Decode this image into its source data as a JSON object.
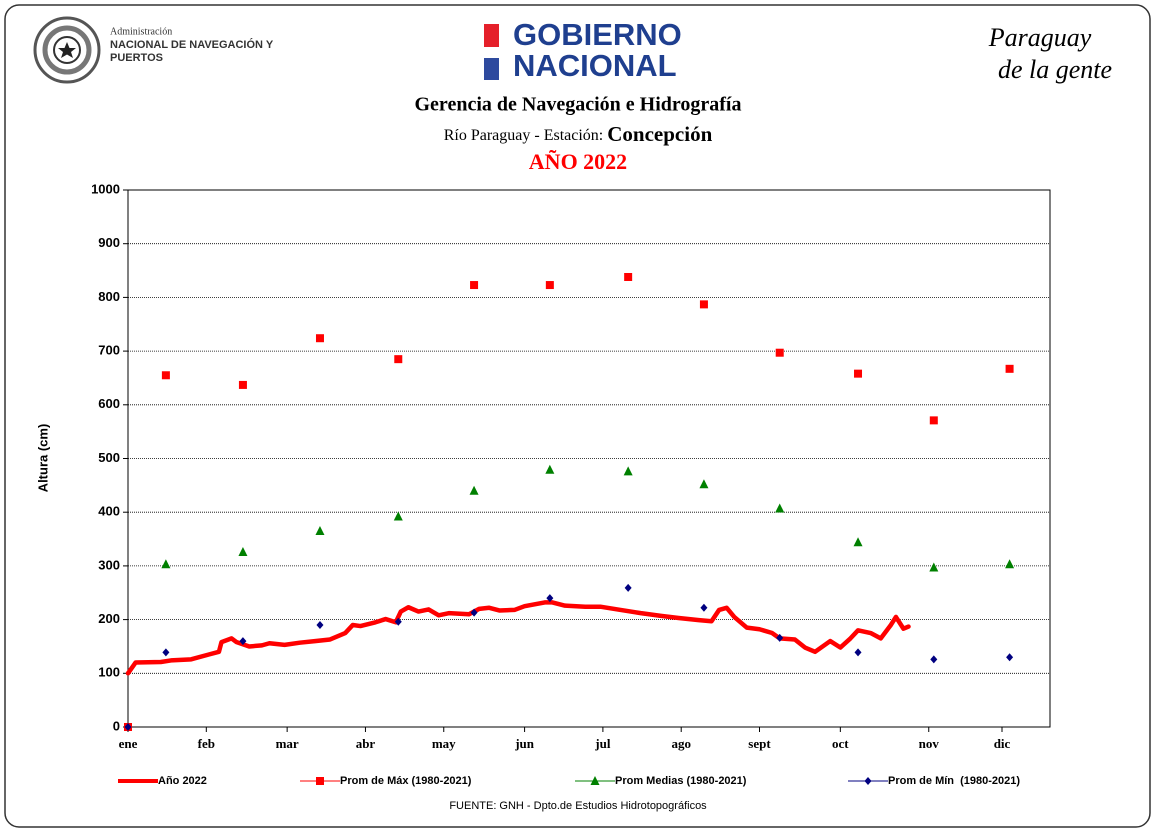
{
  "header": {
    "agency": [
      "Administración",
      "NACIONAL DE NAVEGACIÓN Y",
      "PUERTOS"
    ],
    "government": [
      "GOBIERNO",
      "NACIONAL"
    ],
    "slogan": [
      "Paraguay",
      "de la gente"
    ]
  },
  "chart_data": {
    "type": "line",
    "title": "Gerencia de Navegación e Hidrografía",
    "subtitle": [
      "Río Paraguay - Estación:",
      "Concepción"
    ],
    "annotation": "AÑO 2022",
    "y_label": "Altura (cm)",
    "source": "FUENTE: GNH - Dpto.de Estudios Hidrotopográficos",
    "xlim": [
      0,
      365
    ],
    "xticks": [
      {
        "value": 0,
        "label": "ene"
      },
      {
        "value": 31,
        "label": "feb"
      },
      {
        "value": 63,
        "label": "mar"
      },
      {
        "value": 94,
        "label": "abr"
      },
      {
        "value": 125,
        "label": "may"
      },
      {
        "value": 157,
        "label": "jun"
      },
      {
        "value": 188,
        "label": "jul"
      },
      {
        "value": 219,
        "label": "ago"
      },
      {
        "value": 250,
        "label": "sept"
      },
      {
        "value": 282,
        "label": "oct"
      },
      {
        "value": 317,
        "label": "nov"
      },
      {
        "value": 346,
        "label": "dic"
      }
    ],
    "ylim": [
      0,
      1000
    ],
    "yticks": [
      0,
      100,
      200,
      300,
      400,
      500,
      600,
      700,
      800,
      900,
      1000
    ],
    "grid": true,
    "series": [
      {
        "name": "Año 2022",
        "color": "#ff0000",
        "marker": "line",
        "x": [
          0,
          3,
          13,
          17,
          25,
          32,
          36,
          37,
          41,
          43,
          48,
          53,
          56,
          62,
          68,
          74,
          80,
          86,
          89,
          92,
          98,
          102,
          106,
          108,
          111,
          115,
          119,
          123,
          127,
          135,
          139,
          143,
          147,
          153,
          157,
          165,
          168,
          173,
          181,
          187,
          195,
          203,
          211,
          218,
          226,
          231,
          234,
          237,
          240,
          245,
          250,
          255,
          258,
          264,
          268,
          272,
          278,
          282,
          286,
          289,
          294,
          298,
          302,
          304,
          307,
          309
        ],
        "values": [
          100,
          120,
          121,
          124,
          126,
          135,
          140,
          158,
          165,
          158,
          150,
          152,
          156,
          153,
          157,
          160,
          163,
          175,
          190,
          188,
          195,
          201,
          195,
          215,
          223,
          215,
          219,
          208,
          212,
          210,
          220,
          222,
          217,
          218,
          225,
          232,
          232,
          226,
          224,
          224,
          218,
          212,
          207,
          203,
          199,
          197,
          218,
          222,
          205,
          185,
          182,
          175,
          165,
          163,
          148,
          140,
          160,
          148,
          165,
          180,
          175,
          165,
          190,
          205,
          183,
          187
        ]
      },
      {
        "name": "Prom de Máx (1980-2021)",
        "color": "#ff0000",
        "marker": "square",
        "x": [
          0,
          15,
          45.5,
          76,
          107,
          137,
          167,
          198,
          228,
          258,
          289,
          319,
          349
        ],
        "values": [
          0,
          655,
          637,
          724,
          685,
          823,
          823,
          838,
          787,
          697,
          658,
          571,
          667
        ]
      },
      {
        "name": "Prom Medias (1980-2021)",
        "color": "#008000",
        "marker": "triangle",
        "x": [
          15,
          45.5,
          76,
          107,
          137,
          167,
          198,
          228,
          258,
          289,
          319,
          349
        ],
        "values": [
          303,
          326,
          365,
          392,
          440,
          479,
          476,
          452,
          407,
          344,
          297,
          303
        ]
      },
      {
        "name": "Prom de Mín  (1980-2021)",
        "color": "#000080",
        "marker": "diamond",
        "x": [
          0,
          15,
          45.5,
          76,
          107,
          137,
          167,
          198,
          228,
          258,
          289,
          319,
          349
        ],
        "values": [
          0,
          139,
          160,
          190,
          196,
          213,
          240,
          259,
          222,
          166,
          139,
          126,
          130
        ]
      }
    ]
  }
}
